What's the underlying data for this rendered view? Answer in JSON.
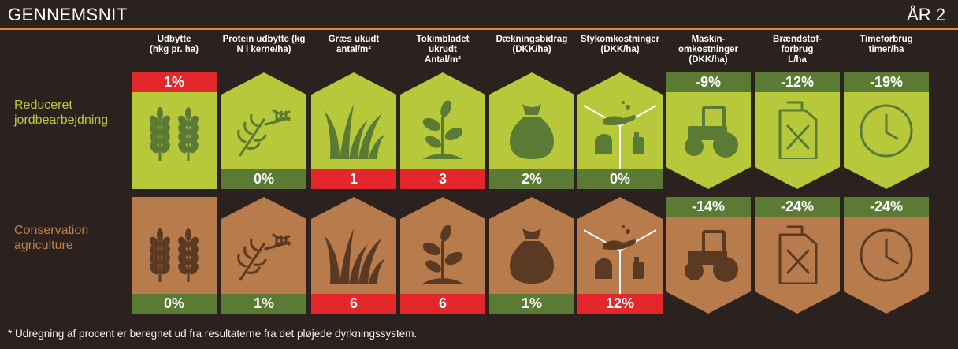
{
  "header": {
    "title": "GENNEMSNIT",
    "year": "ÅR 2"
  },
  "columns": [
    {
      "id": "udbytte",
      "label": "Udbytte\n(hkg pr. ha)"
    },
    {
      "id": "protein",
      "label": "Protein udbytte (kg\nN i kerne/ha)"
    },
    {
      "id": "graes",
      "label": "Græs ukudt\nantal/m²"
    },
    {
      "id": "tokim",
      "label": "Tokimbladet\nukrudt\nAntal/m²"
    },
    {
      "id": "daek",
      "label": "Dækningsbidrag\n(DKK/ha)"
    },
    {
      "id": "styk",
      "label": "Stykomkostninger\n(DKK/ha)"
    },
    {
      "id": "maskin",
      "label": "Maskin-\nomkostninger\n(DKK/ha)"
    },
    {
      "id": "braend",
      "label": "Brændstof-\nforbrug\nL/ha"
    },
    {
      "id": "time",
      "label": "Timeforbrug\ntimer/ha"
    }
  ],
  "rows": [
    {
      "label": "Reduceret\njordbearbejdning",
      "values": [
        "1%",
        "0%",
        "1",
        "3",
        "2%",
        "0%",
        "-9%",
        "-12%",
        "-19%"
      ],
      "badge_colors": [
        "red",
        "dgreen",
        "red",
        "red",
        "dgreen",
        "dgreen",
        "dgreen",
        "dgreen",
        "dgreen"
      ]
    },
    {
      "label": "Conservation\nagriculture",
      "values": [
        "0%",
        "1%",
        "6",
        "6",
        "1%",
        "12%",
        "-14%",
        "-24%",
        "-24%"
      ],
      "badge_colors": [
        "dgreen",
        "dgreen",
        "red",
        "red",
        "dgreen",
        "red",
        "dgreen",
        "dgreen",
        "dgreen"
      ]
    }
  ],
  "icons": [
    "wheat-icon",
    "wheat-dna-icon",
    "grass-icon",
    "seedling-icon",
    "money-bag-icon",
    "cost-cube-icon",
    "tractor-icon",
    "fuel-can-icon",
    "clock-icon"
  ],
  "colors": {
    "green_fill": "#b7c93a",
    "green_dark": "#5b7a33",
    "brown_fill": "#b87b4b",
    "brown_dark": "#5a3a22",
    "red": "#e4272a",
    "accent": "#e0872b"
  },
  "footnote": "* Udregning af procent er beregnet ud fra resultaterne fra det pløjede dyrkningssystem."
}
